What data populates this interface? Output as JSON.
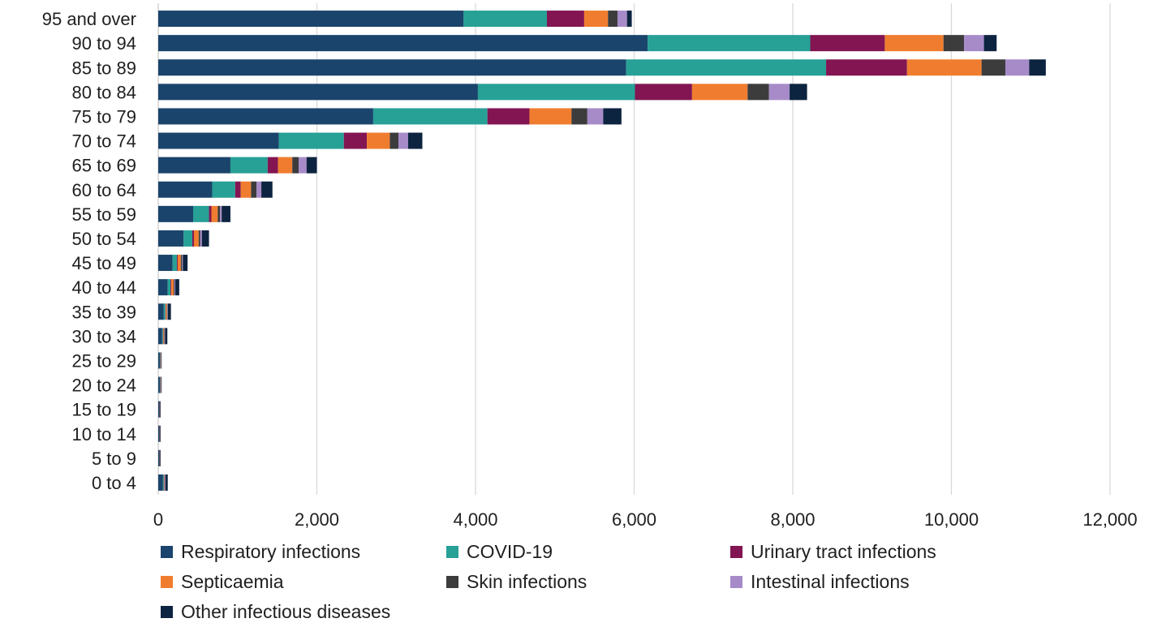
{
  "chart_data": {
    "type": "bar",
    "orientation": "horizontal",
    "stacked": true,
    "title": "",
    "xlabel": "",
    "ylabel": "",
    "xlim": [
      0,
      12000
    ],
    "x_ticks": [
      0,
      2000,
      4000,
      6000,
      8000,
      10000,
      12000
    ],
    "x_tick_labels": [
      "0",
      "2,000",
      "4,000",
      "6,000",
      "8,000",
      "10,000",
      "12,000"
    ],
    "grid": "vertical",
    "legend_position": "bottom",
    "categories": [
      "95 and over",
      "90 to 94",
      "85 to 89",
      "80 to 84",
      "75 to 79",
      "70 to 74",
      "65 to 69",
      "60 to 64",
      "55 to 59",
      "50 to 54",
      "45 to 49",
      "40 to 44",
      "35 to 39",
      "30 to 34",
      "25 to 29",
      "20 to 24",
      "15 to 19",
      "10 to 14",
      "5 to 9",
      "0 to 4"
    ],
    "series": [
      {
        "name": "Respiratory infections",
        "color": "#1a446b",
        "values": [
          3850,
          6170,
          5900,
          4030,
          2710,
          1520,
          910,
          680,
          440,
          320,
          180,
          120,
          70,
          50,
          20,
          20,
          15,
          15,
          15,
          60
        ]
      },
      {
        "name": "COVID-19",
        "color": "#27a096",
        "values": [
          1050,
          2050,
          2520,
          1980,
          1440,
          820,
          470,
          290,
          200,
          110,
          55,
          35,
          20,
          10,
          5,
          5,
          2,
          2,
          2,
          10
        ]
      },
      {
        "name": "Urinary tract infections",
        "color": "#821552",
        "values": [
          470,
          940,
          1020,
          720,
          530,
          290,
          130,
          70,
          30,
          20,
          10,
          10,
          5,
          5,
          2,
          2,
          2,
          2,
          2,
          5
        ]
      },
      {
        "name": "Septicaemia",
        "color": "#f07d2f",
        "values": [
          300,
          740,
          940,
          700,
          530,
          290,
          180,
          130,
          80,
          60,
          40,
          30,
          15,
          10,
          5,
          5,
          3,
          3,
          3,
          5
        ]
      },
      {
        "name": "Skin infections",
        "color": "#3c3c3c",
        "values": [
          120,
          260,
          300,
          270,
          200,
          110,
          80,
          70,
          30,
          20,
          15,
          10,
          5,
          5,
          2,
          2,
          1,
          1,
          1,
          3
        ]
      },
      {
        "name": "Intestinal infections",
        "color": "#a78bc9",
        "values": [
          120,
          250,
          300,
          260,
          200,
          120,
          100,
          60,
          20,
          20,
          10,
          10,
          5,
          5,
          4,
          4,
          3,
          3,
          3,
          7
        ]
      },
      {
        "name": "Other infectious diseases",
        "color": "#0d2440",
        "values": [
          60,
          160,
          210,
          220,
          230,
          180,
          130,
          140,
          110,
          90,
          60,
          50,
          40,
          30,
          4,
          4,
          4,
          4,
          4,
          30
        ]
      }
    ]
  }
}
